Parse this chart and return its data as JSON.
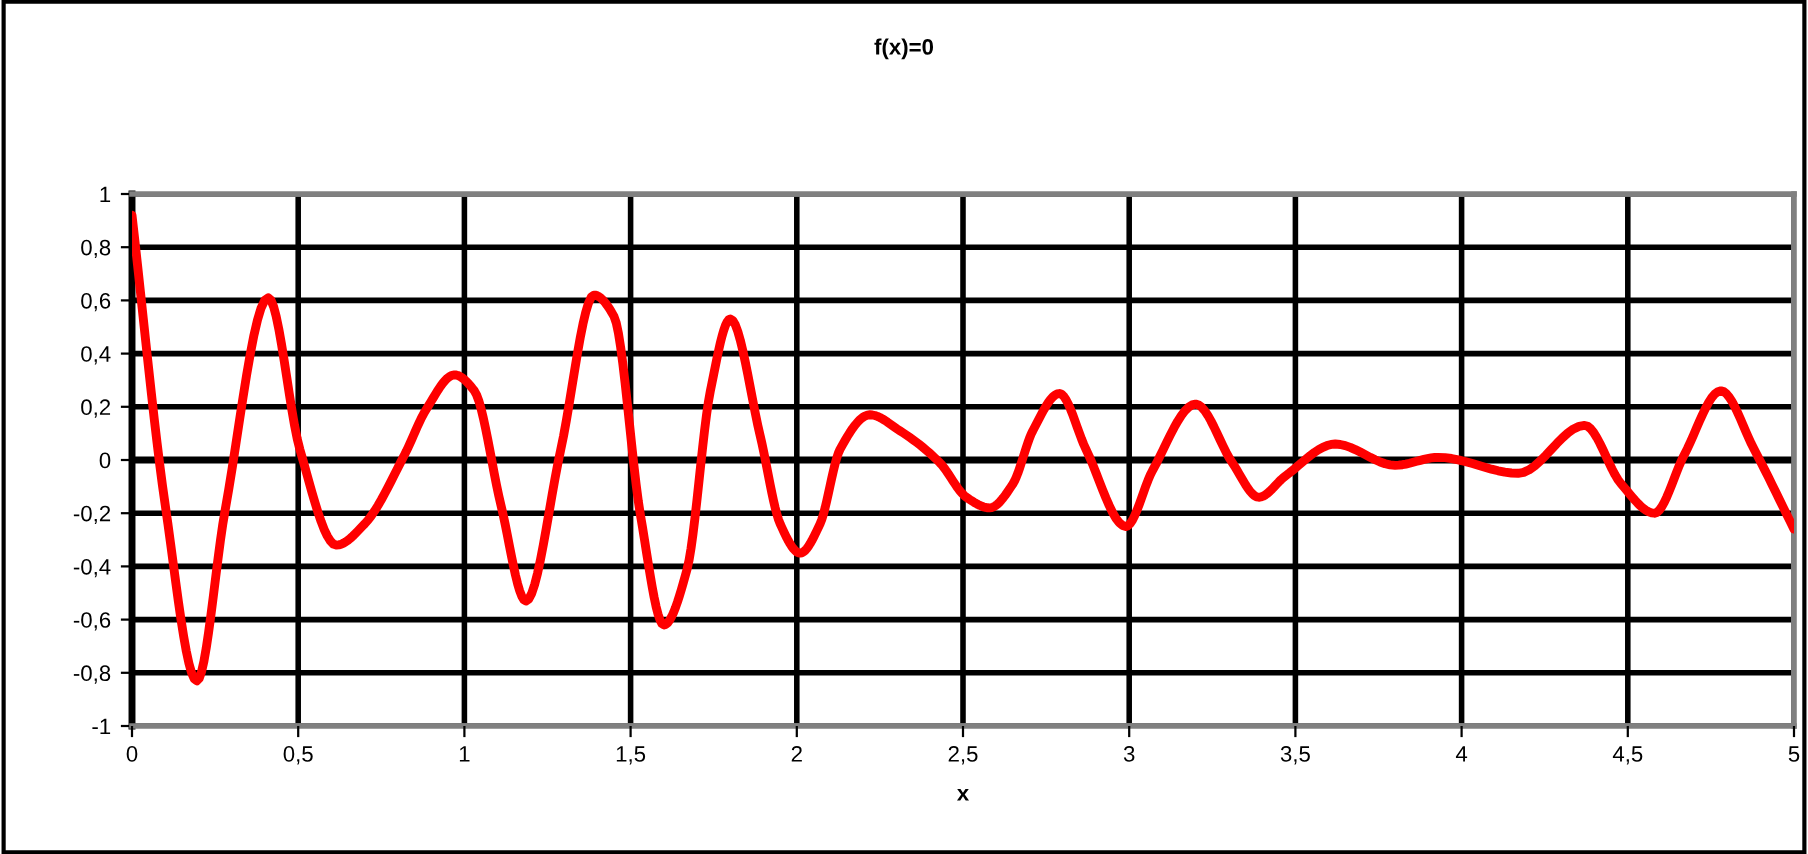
{
  "chart_data": {
    "type": "line",
    "title": "f(x)=0",
    "xlabel": "x",
    "series": [
      {
        "color": "#ff0000",
        "x": [
          0,
          0.1,
          0.195,
          0.28,
          0.41,
          0.505,
          0.615,
          0.7,
          0.82,
          0.885,
          0.97,
          1.03,
          1.11,
          1.185,
          1.29,
          1.39,
          1.45,
          1.53,
          1.6,
          1.67,
          1.74,
          1.8,
          1.89,
          1.95,
          2.01,
          2.07,
          2.13,
          2.22,
          2.31,
          2.43,
          2.51,
          2.58,
          2.65,
          2.71,
          2.79,
          2.87,
          2.99,
          3.07,
          3.2,
          3.31,
          3.39,
          3.47,
          3.62,
          3.8,
          3.93,
          4.17,
          4.37,
          4.48,
          4.58,
          4.67,
          4.78,
          4.88,
          5.0
        ],
        "values": [
          0.92,
          -0.17,
          -0.83,
          -0.19,
          0.61,
          0.04,
          -0.32,
          -0.24,
          0.02,
          0.19,
          0.32,
          0.26,
          -0.17,
          -0.53,
          0.04,
          0.62,
          0.54,
          -0.21,
          -0.62,
          -0.41,
          0.26,
          0.53,
          0.09,
          -0.24,
          -0.35,
          -0.24,
          0.04,
          0.17,
          0.11,
          -0.01,
          -0.14,
          -0.18,
          -0.09,
          0.11,
          0.25,
          0.04,
          -0.25,
          -0.04,
          0.21,
          -0.01,
          -0.14,
          -0.06,
          0.06,
          -0.02,
          0.01,
          -0.05,
          0.13,
          -0.09,
          -0.2,
          0.02,
          0.26,
          0.04,
          -0.26
        ]
      }
    ],
    "xlim": [
      0,
      5
    ],
    "xticks": [
      {
        "value": 0,
        "label": "0"
      },
      {
        "value": 0.5,
        "label": "0,5"
      },
      {
        "value": 1,
        "label": "1"
      },
      {
        "value": 1.5,
        "label": "1,5"
      },
      {
        "value": 2,
        "label": "2"
      },
      {
        "value": 2.5,
        "label": "2,5"
      },
      {
        "value": 3,
        "label": "3"
      },
      {
        "value": 3.5,
        "label": "3,5"
      },
      {
        "value": 4,
        "label": "4"
      },
      {
        "value": 4.5,
        "label": "4,5"
      },
      {
        "value": 5,
        "label": "5"
      }
    ],
    "ylim": [
      -1,
      1
    ],
    "yticks": [
      {
        "value": -1,
        "label": "-1"
      },
      {
        "value": -0.8,
        "label": "-0,8"
      },
      {
        "value": -0.6,
        "label": "-0,6"
      },
      {
        "value": -0.4,
        "label": "-0,4"
      },
      {
        "value": -0.2,
        "label": "-0,2"
      },
      {
        "value": 0,
        "label": "0"
      },
      {
        "value": 0.2,
        "label": "0,2"
      },
      {
        "value": 0.4,
        "label": "0,4"
      },
      {
        "value": 0.6,
        "label": "0,6"
      },
      {
        "value": 0.8,
        "label": "0,8"
      },
      {
        "value": 1,
        "label": "1"
      }
    ],
    "grid": true,
    "marker": "none",
    "line_style": "solid",
    "legend": false
  }
}
